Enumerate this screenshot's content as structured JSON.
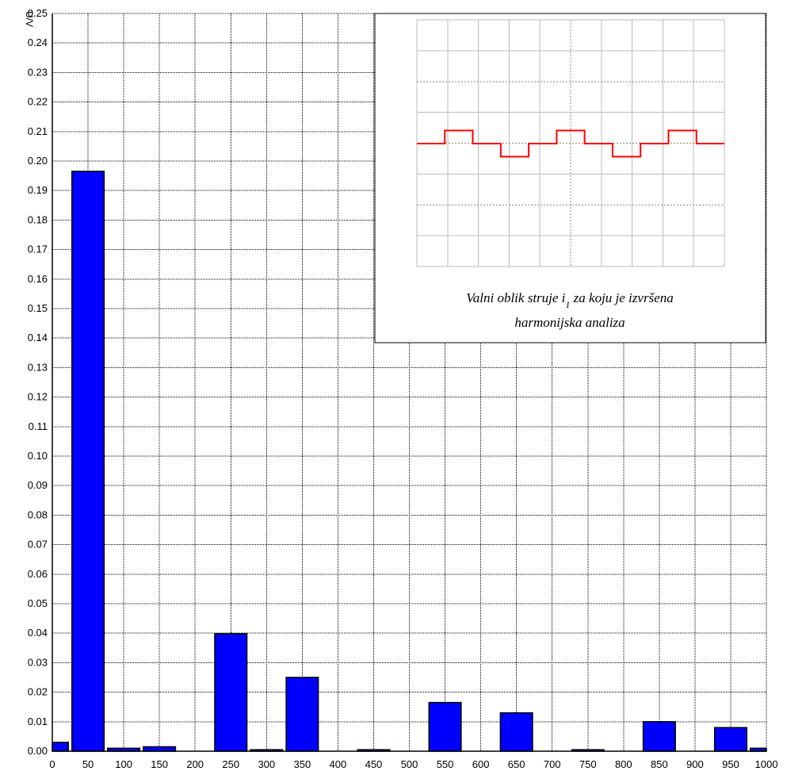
{
  "chart_data": {
    "type": "bar",
    "ylabel": "U/V",
    "xlabel": "",
    "xlim": [
      0,
      1000
    ],
    "ylim": [
      0,
      0.25
    ],
    "grid": true,
    "bar_color": "#0000ff",
    "xticks": [
      "0",
      "50",
      "100",
      "150",
      "200",
      "250",
      "300",
      "350",
      "400",
      "450",
      "500",
      "550",
      "600",
      "650",
      "700",
      "750",
      "800",
      "850",
      "900",
      "950",
      "1000"
    ],
    "yticks": [
      "0.00",
      "0.01",
      "0.02",
      "0.03",
      "0.04",
      "0.05",
      "0.06",
      "0.07",
      "0.08",
      "0.09",
      "0.10",
      "0.11",
      "0.12",
      "0.13",
      "0.14",
      "0.15",
      "0.16",
      "0.17",
      "0.18",
      "0.19",
      "0.20",
      "0.21",
      "0.22",
      "0.23",
      "0.24",
      "0.25"
    ],
    "bars": [
      {
        "x": 0,
        "y": 0.003
      },
      {
        "x": 50,
        "y": 0.1965
      },
      {
        "x": 100,
        "y": 0.001
      },
      {
        "x": 150,
        "y": 0.0015
      },
      {
        "x": 250,
        "y": 0.0398
      },
      {
        "x": 300,
        "y": 0.0005
      },
      {
        "x": 350,
        "y": 0.025
      },
      {
        "x": 450,
        "y": 0.0005
      },
      {
        "x": 550,
        "y": 0.0165
      },
      {
        "x": 650,
        "y": 0.013
      },
      {
        "x": 750,
        "y": 0.0005
      },
      {
        "x": 850,
        "y": 0.01
      },
      {
        "x": 950,
        "y": 0.008
      },
      {
        "x": 1000,
        "y": 0.001
      }
    ],
    "inset": {
      "caption_line1_prefix": "Valni oblik struje i",
      "caption_subscript": "1",
      "caption_line1_suffix": " za koju  je izvršena",
      "caption_line2": "harmonijska analiza",
      "waveform_color": "#ff0000",
      "waveform_levels": [
        0,
        1,
        0,
        -1,
        0,
        1,
        0,
        -1,
        0,
        1,
        0
      ]
    }
  }
}
